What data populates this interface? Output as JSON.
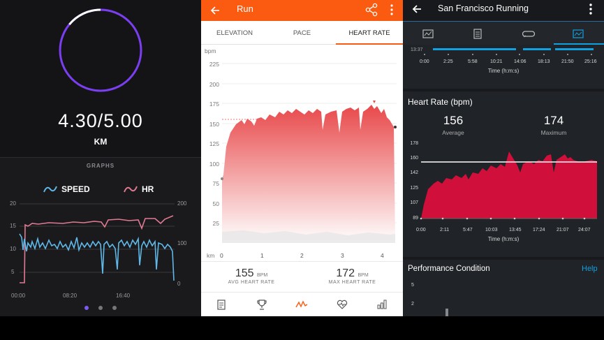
{
  "left": {
    "progress_text": "4.30/5.00",
    "unit": "KM",
    "ring_fraction": 0.86,
    "section_title": "GRAPHS",
    "legend": {
      "speed": "SPEED",
      "hr": "HR"
    },
    "y_left_ticks": [
      "20",
      "15",
      "10",
      "5"
    ],
    "y_right_ticks": [
      "200",
      "100",
      "0"
    ],
    "x_ticks": [
      "00:00",
      "08:20",
      "16:40"
    ],
    "colors": {
      "ring": "#7a3ff0",
      "speed": "#5fb8e8",
      "hr": "#e07a92",
      "accent_dot": "#7a5cf0"
    }
  },
  "middle": {
    "title": "Run",
    "tabs": [
      "ELEVATION",
      "PACE",
      "HEART RATE"
    ],
    "selected_tab": "HEART RATE",
    "y_unit": "bpm",
    "y_ticks": [
      "225",
      "200",
      "175",
      "150",
      "125",
      "100",
      "75",
      "50",
      "25"
    ],
    "x_unit": "km",
    "x_ticks": [
      "0",
      "1",
      "2",
      "3",
      "4"
    ],
    "avg_value": "155",
    "avg_unit": "BPM",
    "avg_label": "AVG HEART RATE",
    "max_value": "172",
    "max_unit": "BPM",
    "max_label": "MAX HEART RATE",
    "nav_icons": [
      "summary-icon",
      "trophy-icon",
      "analysis-icon",
      "heart-icon",
      "stats-icon"
    ],
    "colors": {
      "header": "#fa5b11",
      "chart": "#e8484a"
    }
  },
  "right": {
    "title": "San Francisco Running",
    "tab_icons": [
      "map-icon",
      "details-icon",
      "laps-icon",
      "charts-icon"
    ],
    "top_x_ticks": [
      "0:00",
      "2:25",
      "5:58",
      "10:21",
      "14:06",
      "18:13",
      "21:50",
      "25:16"
    ],
    "top_partial_tick": "13:37",
    "time_axis_label": "Time (h:m:s)",
    "hr_section_title": "Heart Rate (bpm)",
    "avg_value": "156",
    "avg_label": "Average",
    "max_value": "174",
    "max_label": "Maximum",
    "y_ticks": [
      "178",
      "160",
      "142",
      "125",
      "107",
      "89"
    ],
    "x_ticks": [
      "0:00",
      "2:11",
      "5:47",
      "10:03",
      "13:45",
      "17:24",
      "21:07",
      "24:07"
    ],
    "perf_title": "Performance Condition",
    "perf_help": "Help",
    "perf_y_ticks": [
      "5",
      "2"
    ],
    "colors": {
      "chart": "#d0103a",
      "accent": "#11a0e0"
    }
  }
}
